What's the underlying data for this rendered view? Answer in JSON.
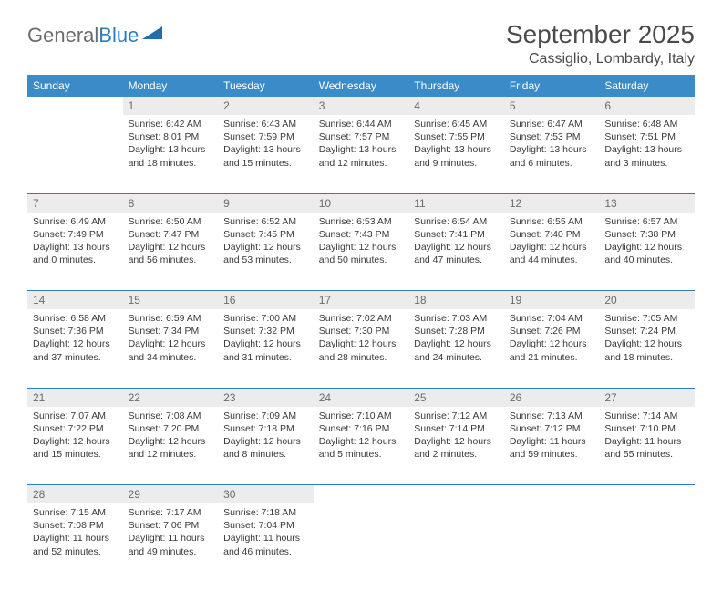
{
  "brand": {
    "part1": "General",
    "part2": "Blue"
  },
  "title": "September 2025",
  "location": "Cassiglio, Lombardy, Italy",
  "colors": {
    "header_bg": "#3b8bc8",
    "header_text": "#ffffff",
    "daynum_bg": "#ececec",
    "daynum_text": "#6b6b6b",
    "rule": "#2f7bbf",
    "body_text": "#3a3a3a",
    "title_text": "#4a4a4a"
  },
  "weekdays": [
    "Sunday",
    "Monday",
    "Tuesday",
    "Wednesday",
    "Thursday",
    "Friday",
    "Saturday"
  ],
  "start_offset": 1,
  "days": [
    {
      "n": 1,
      "sunrise": "6:42 AM",
      "sunset": "8:01 PM",
      "daylight": "13 hours and 18 minutes."
    },
    {
      "n": 2,
      "sunrise": "6:43 AM",
      "sunset": "7:59 PM",
      "daylight": "13 hours and 15 minutes."
    },
    {
      "n": 3,
      "sunrise": "6:44 AM",
      "sunset": "7:57 PM",
      "daylight": "13 hours and 12 minutes."
    },
    {
      "n": 4,
      "sunrise": "6:45 AM",
      "sunset": "7:55 PM",
      "daylight": "13 hours and 9 minutes."
    },
    {
      "n": 5,
      "sunrise": "6:47 AM",
      "sunset": "7:53 PM",
      "daylight": "13 hours and 6 minutes."
    },
    {
      "n": 6,
      "sunrise": "6:48 AM",
      "sunset": "7:51 PM",
      "daylight": "13 hours and 3 minutes."
    },
    {
      "n": 7,
      "sunrise": "6:49 AM",
      "sunset": "7:49 PM",
      "daylight": "13 hours and 0 minutes."
    },
    {
      "n": 8,
      "sunrise": "6:50 AM",
      "sunset": "7:47 PM",
      "daylight": "12 hours and 56 minutes."
    },
    {
      "n": 9,
      "sunrise": "6:52 AM",
      "sunset": "7:45 PM",
      "daylight": "12 hours and 53 minutes."
    },
    {
      "n": 10,
      "sunrise": "6:53 AM",
      "sunset": "7:43 PM",
      "daylight": "12 hours and 50 minutes."
    },
    {
      "n": 11,
      "sunrise": "6:54 AM",
      "sunset": "7:41 PM",
      "daylight": "12 hours and 47 minutes."
    },
    {
      "n": 12,
      "sunrise": "6:55 AM",
      "sunset": "7:40 PM",
      "daylight": "12 hours and 44 minutes."
    },
    {
      "n": 13,
      "sunrise": "6:57 AM",
      "sunset": "7:38 PM",
      "daylight": "12 hours and 40 minutes."
    },
    {
      "n": 14,
      "sunrise": "6:58 AM",
      "sunset": "7:36 PM",
      "daylight": "12 hours and 37 minutes."
    },
    {
      "n": 15,
      "sunrise": "6:59 AM",
      "sunset": "7:34 PM",
      "daylight": "12 hours and 34 minutes."
    },
    {
      "n": 16,
      "sunrise": "7:00 AM",
      "sunset": "7:32 PM",
      "daylight": "12 hours and 31 minutes."
    },
    {
      "n": 17,
      "sunrise": "7:02 AM",
      "sunset": "7:30 PM",
      "daylight": "12 hours and 28 minutes."
    },
    {
      "n": 18,
      "sunrise": "7:03 AM",
      "sunset": "7:28 PM",
      "daylight": "12 hours and 24 minutes."
    },
    {
      "n": 19,
      "sunrise": "7:04 AM",
      "sunset": "7:26 PM",
      "daylight": "12 hours and 21 minutes."
    },
    {
      "n": 20,
      "sunrise": "7:05 AM",
      "sunset": "7:24 PM",
      "daylight": "12 hours and 18 minutes."
    },
    {
      "n": 21,
      "sunrise": "7:07 AM",
      "sunset": "7:22 PM",
      "daylight": "12 hours and 15 minutes."
    },
    {
      "n": 22,
      "sunrise": "7:08 AM",
      "sunset": "7:20 PM",
      "daylight": "12 hours and 12 minutes."
    },
    {
      "n": 23,
      "sunrise": "7:09 AM",
      "sunset": "7:18 PM",
      "daylight": "12 hours and 8 minutes."
    },
    {
      "n": 24,
      "sunrise": "7:10 AM",
      "sunset": "7:16 PM",
      "daylight": "12 hours and 5 minutes."
    },
    {
      "n": 25,
      "sunrise": "7:12 AM",
      "sunset": "7:14 PM",
      "daylight": "12 hours and 2 minutes."
    },
    {
      "n": 26,
      "sunrise": "7:13 AM",
      "sunset": "7:12 PM",
      "daylight": "11 hours and 59 minutes."
    },
    {
      "n": 27,
      "sunrise": "7:14 AM",
      "sunset": "7:10 PM",
      "daylight": "11 hours and 55 minutes."
    },
    {
      "n": 28,
      "sunrise": "7:15 AM",
      "sunset": "7:08 PM",
      "daylight": "11 hours and 52 minutes."
    },
    {
      "n": 29,
      "sunrise": "7:17 AM",
      "sunset": "7:06 PM",
      "daylight": "11 hours and 49 minutes."
    },
    {
      "n": 30,
      "sunrise": "7:18 AM",
      "sunset": "7:04 PM",
      "daylight": "11 hours and 46 minutes."
    }
  ],
  "labels": {
    "sunrise": "Sunrise:",
    "sunset": "Sunset:",
    "daylight": "Daylight:"
  }
}
